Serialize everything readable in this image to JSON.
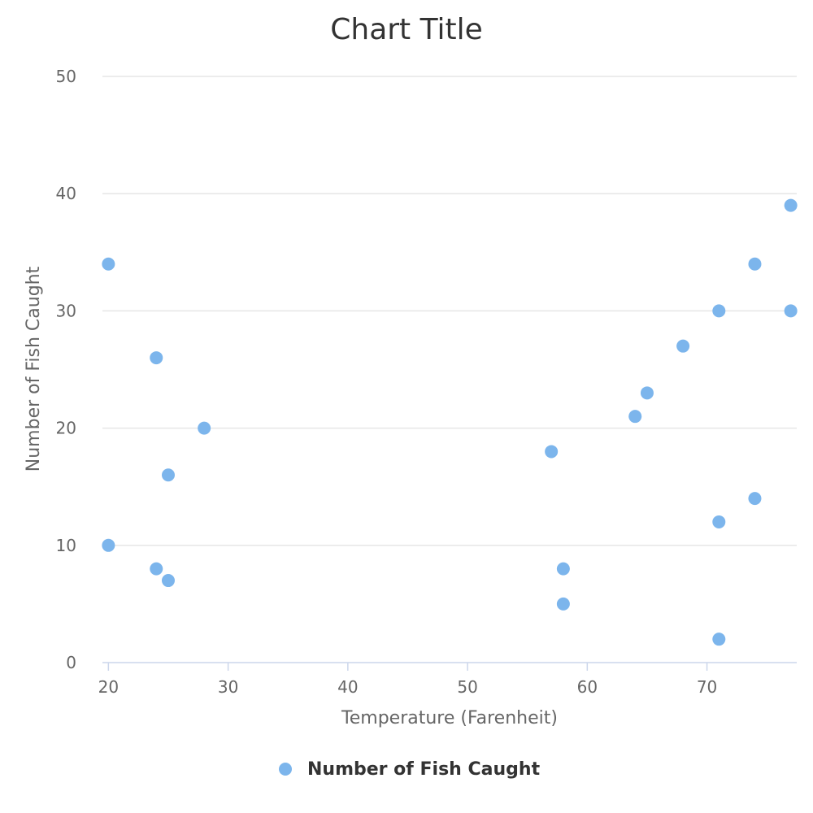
{
  "chart_data": {
    "type": "scatter",
    "title": "Chart Title",
    "xlabel": "Temperature (Farenheit)",
    "ylabel": "Number of Fish Caught",
    "xlim": [
      19.5,
      77.5
    ],
    "ylim": [
      0,
      50
    ],
    "xticks": [
      20,
      30,
      40,
      50,
      60,
      70
    ],
    "yticks": [
      0,
      10,
      20,
      30,
      40,
      50
    ],
    "grid": "horizontal",
    "legend": "bottom-center",
    "series": [
      {
        "name": "Number of Fish Caught",
        "color": "#7cb5ec",
        "points": [
          {
            "x": 20,
            "y": 34
          },
          {
            "x": 20,
            "y": 10
          },
          {
            "x": 24,
            "y": 26
          },
          {
            "x": 24,
            "y": 8
          },
          {
            "x": 25,
            "y": 16
          },
          {
            "x": 25,
            "y": 7
          },
          {
            "x": 28,
            "y": 20
          },
          {
            "x": 57,
            "y": 18
          },
          {
            "x": 58,
            "y": 8
          },
          {
            "x": 58,
            "y": 5
          },
          {
            "x": 64,
            "y": 21
          },
          {
            "x": 65,
            "y": 23
          },
          {
            "x": 68,
            "y": 27
          },
          {
            "x": 71,
            "y": 30
          },
          {
            "x": 71,
            "y": 12
          },
          {
            "x": 71,
            "y": 2
          },
          {
            "x": 74,
            "y": 34
          },
          {
            "x": 74,
            "y": 14
          },
          {
            "x": 77,
            "y": 39
          },
          {
            "x": 77,
            "y": 30
          }
        ]
      }
    ]
  }
}
